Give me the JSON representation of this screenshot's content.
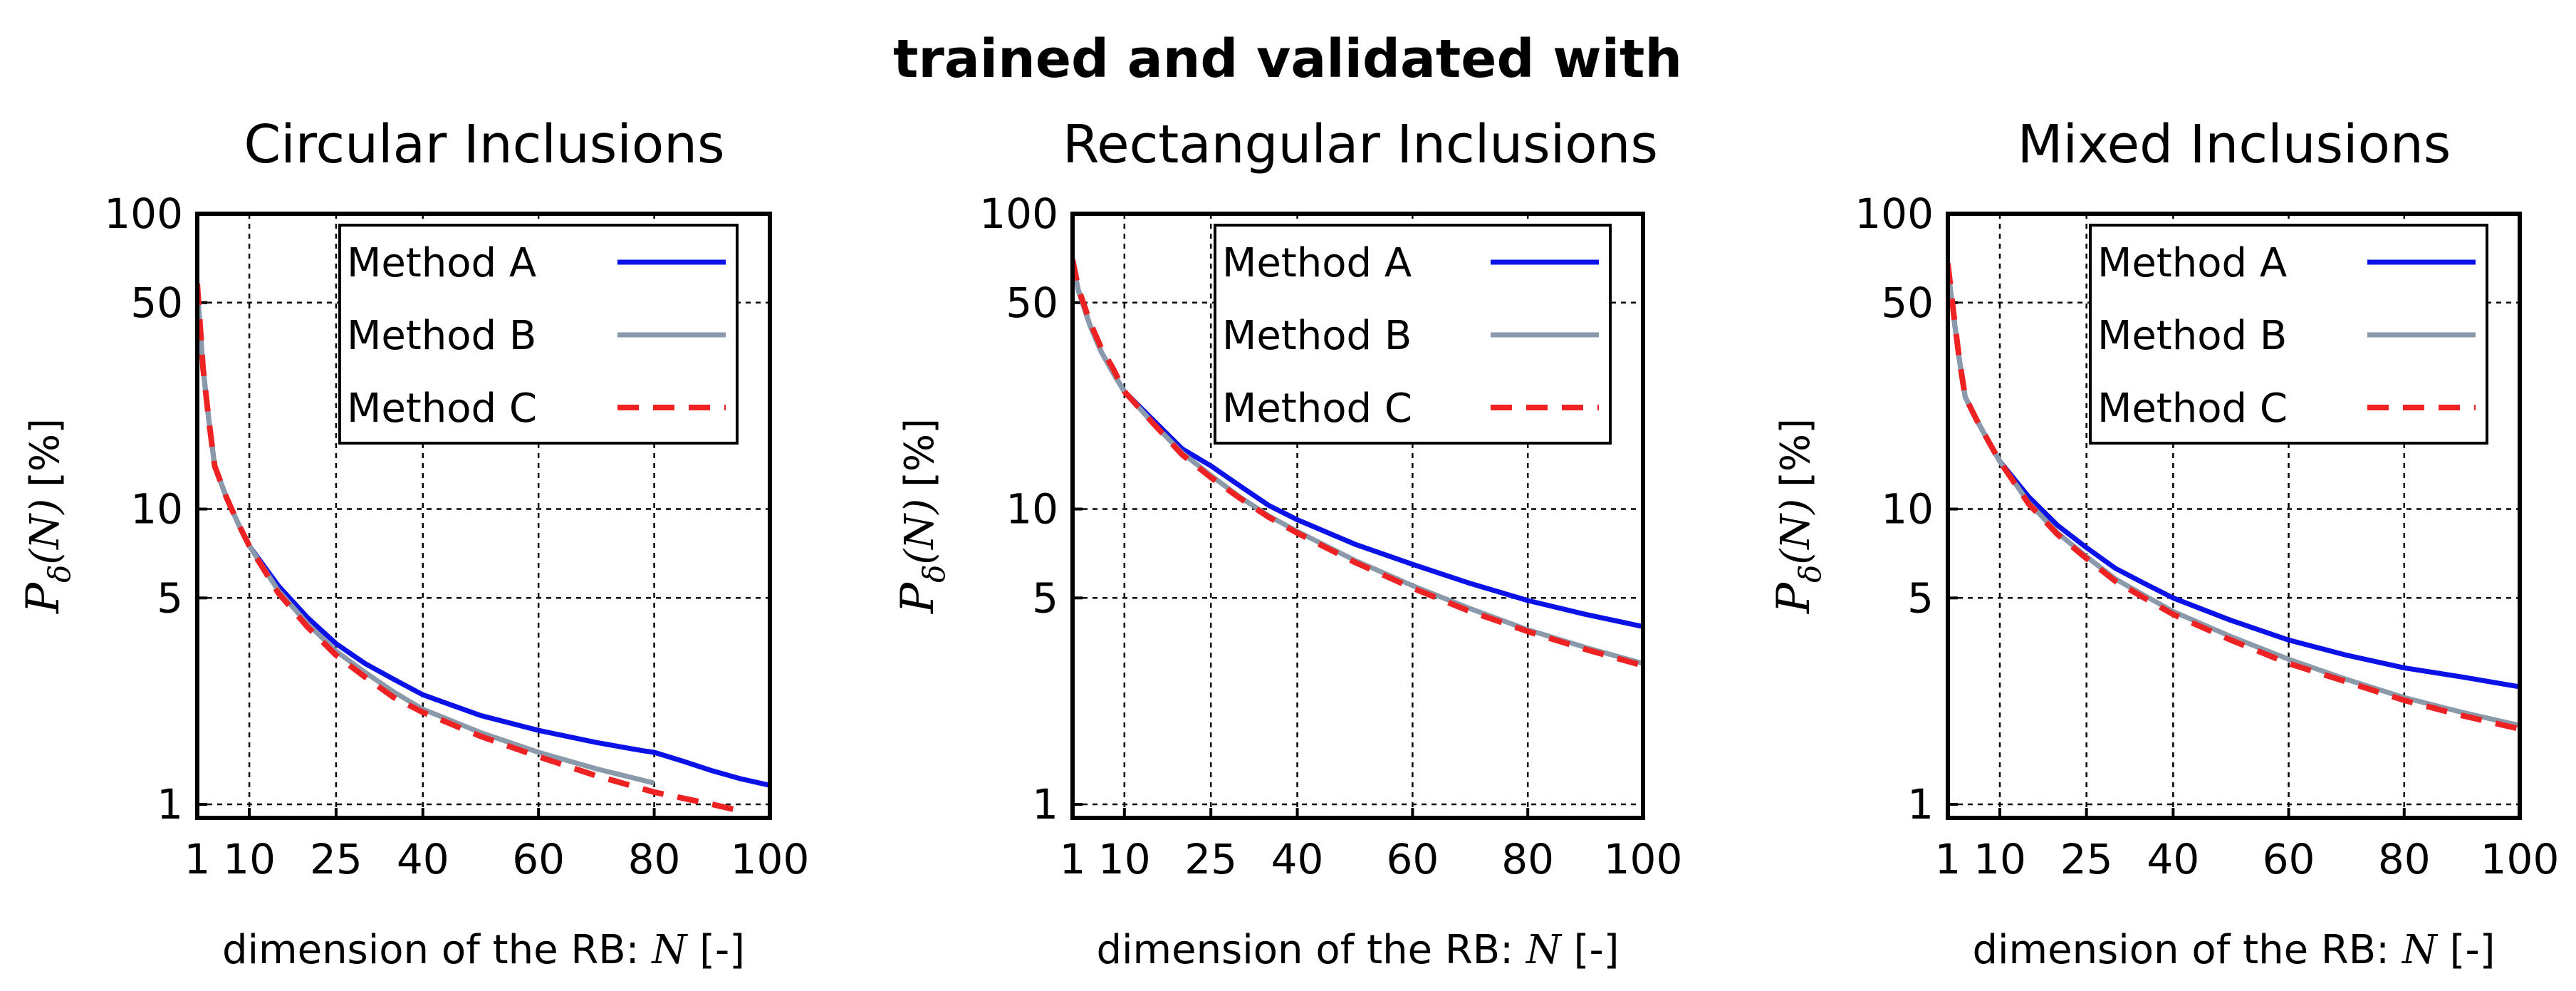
{
  "suptitle": "trained and validated with",
  "xlabel_prefix": "dimension of the RB: ",
  "xlabel_var": "N",
  "xlabel_unit": " [-]",
  "ylabel_sym": "P",
  "ylabel_sub": "δ",
  "ylabel_arg": "(N)",
  "ylabel_unit": "[%]",
  "colors": {
    "Method A": "#0a12e8",
    "Method B": "#8a9aaa",
    "Method C": "#ee2222"
  },
  "chart_data": [
    {
      "type": "line",
      "title": "Circular Inclusions",
      "xlabel": "dimension of the RB: N [-]",
      "ylabel": "P_δ(N) [%]",
      "yscale": "log",
      "xlim": [
        1,
        100
      ],
      "ylim": [
        0.9,
        100
      ],
      "xticks": [
        1,
        10,
        25,
        40,
        60,
        80,
        100
      ],
      "yticks": [
        1,
        5,
        10,
        50,
        100
      ],
      "grid": true,
      "legend_position": "top-right",
      "series": [
        {
          "name": "Method A",
          "style": "solid",
          "x": [
            1,
            2,
            3,
            4,
            6,
            8,
            10,
            15,
            20,
            25,
            30,
            35,
            40,
            50,
            60,
            70,
            78,
            80,
            85,
            90,
            95,
            100
          ],
          "y": [
            55,
            30,
            20,
            14,
            11,
            9,
            7.5,
            5.5,
            4.3,
            3.5,
            3.0,
            2.65,
            2.35,
            2.0,
            1.78,
            1.62,
            1.52,
            1.5,
            1.4,
            1.3,
            1.22,
            1.16
          ]
        },
        {
          "name": "Method B",
          "style": "solid",
          "x": [
            1,
            2,
            3,
            4,
            6,
            8,
            10,
            15,
            20,
            25,
            30,
            35,
            40,
            50,
            60,
            70,
            80
          ],
          "y": [
            55,
            30,
            20,
            14,
            11,
            9,
            7.5,
            5.3,
            4.1,
            3.3,
            2.8,
            2.4,
            2.1,
            1.75,
            1.5,
            1.32,
            1.18
          ]
        },
        {
          "name": "Method C",
          "style": "dashed",
          "x": [
            1,
            2,
            3,
            4,
            6,
            8,
            10,
            15,
            20,
            25,
            30,
            35,
            40,
            50,
            60,
            70,
            80,
            90,
            95
          ],
          "y": [
            58,
            30,
            20,
            14,
            11,
            9,
            7.5,
            5.2,
            4.0,
            3.2,
            2.7,
            2.3,
            2.05,
            1.7,
            1.45,
            1.25,
            1.1,
            1.0,
            0.95
          ]
        }
      ]
    },
    {
      "type": "line",
      "title": "Rectangular Inclusions",
      "xlabel": "dimension of the RB: N [-]",
      "ylabel": "P_δ(N) [%]",
      "yscale": "log",
      "xlim": [
        1,
        100
      ],
      "ylim": [
        0.9,
        100
      ],
      "xticks": [
        1,
        10,
        25,
        40,
        60,
        80,
        100
      ],
      "yticks": [
        1,
        5,
        10,
        50,
        100
      ],
      "grid": true,
      "legend_position": "top-right",
      "series": [
        {
          "name": "Method A",
          "style": "solid",
          "x": [
            1,
            2,
            4,
            6,
            8,
            10,
            15,
            20,
            25,
            30,
            35,
            40,
            50,
            60,
            70,
            80,
            90,
            100
          ],
          "y": [
            68,
            55,
            42,
            34,
            29,
            25,
            20,
            16,
            14,
            12,
            10.3,
            9.2,
            7.6,
            6.5,
            5.6,
            4.9,
            4.4,
            4.0
          ]
        },
        {
          "name": "Method B",
          "style": "solid",
          "x": [
            1,
            2,
            4,
            6,
            8,
            10,
            15,
            20,
            25,
            30,
            35,
            40,
            50,
            60,
            70,
            80,
            90,
            100
          ],
          "y": [
            68,
            55,
            42,
            34,
            29,
            25,
            19.5,
            15.5,
            13,
            11,
            9.5,
            8.4,
            6.7,
            5.5,
            4.6,
            3.9,
            3.4,
            3.0
          ]
        },
        {
          "name": "Method C",
          "style": "dashed",
          "x": [
            1,
            2,
            4,
            6,
            8,
            10,
            15,
            20,
            25,
            30,
            35,
            40,
            50,
            60,
            70,
            80,
            90,
            100
          ],
          "y": [
            70,
            56,
            43,
            35,
            30,
            25,
            19.5,
            15.3,
            12.8,
            10.9,
            9.4,
            8.3,
            6.6,
            5.4,
            4.5,
            3.85,
            3.35,
            2.95
          ]
        }
      ]
    },
    {
      "type": "line",
      "title": "Mixed Inclusions",
      "xlabel": "dimension of the RB: N [-]",
      "ylabel": "P_δ(N) [%]",
      "yscale": "log",
      "xlim": [
        1,
        100
      ],
      "ylim": [
        0.9,
        100
      ],
      "xticks": [
        1,
        10,
        25,
        40,
        60,
        80,
        100
      ],
      "yticks": [
        1,
        5,
        10,
        50,
        100
      ],
      "grid": true,
      "legend_position": "top-right",
      "series": [
        {
          "name": "Method A",
          "style": "solid",
          "x": [
            1,
            2,
            3,
            4,
            6,
            8,
            10,
            15,
            20,
            25,
            30,
            35,
            40,
            50,
            60,
            70,
            80,
            90,
            100
          ],
          "y": [
            65,
            45,
            32,
            24,
            20,
            17,
            14.5,
            11,
            8.8,
            7.4,
            6.3,
            5.6,
            5.0,
            4.2,
            3.6,
            3.2,
            2.9,
            2.7,
            2.5
          ]
        },
        {
          "name": "Method B",
          "style": "solid",
          "x": [
            1,
            2,
            3,
            4,
            6,
            8,
            10,
            15,
            20,
            25,
            30,
            35,
            40,
            50,
            60,
            70,
            80,
            90,
            100
          ],
          "y": [
            65,
            45,
            32,
            24,
            20,
            17,
            14.5,
            10.5,
            8.3,
            6.9,
            5.8,
            5.1,
            4.5,
            3.7,
            3.1,
            2.65,
            2.3,
            2.05,
            1.85
          ]
        },
        {
          "name": "Method C",
          "style": "dashed",
          "x": [
            1,
            2,
            3,
            4,
            6,
            8,
            10,
            15,
            20,
            25,
            30,
            35,
            40,
            50,
            60,
            70,
            80,
            90,
            100
          ],
          "y": [
            68,
            46,
            32,
            24,
            20,
            17,
            14.5,
            10.4,
            8.2,
            6.8,
            5.7,
            5.0,
            4.4,
            3.6,
            3.0,
            2.6,
            2.25,
            2.0,
            1.8
          ]
        }
      ]
    }
  ]
}
